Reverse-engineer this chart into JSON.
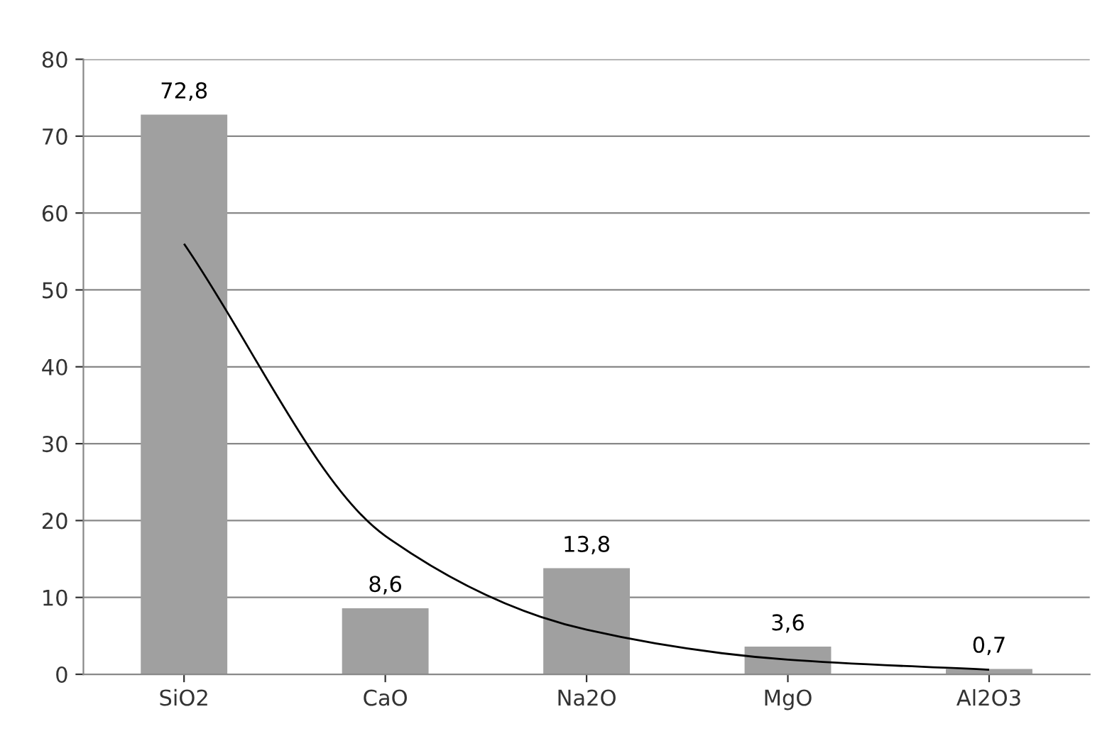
{
  "chart_data": {
    "type": "bar",
    "categories": [
      "SiO2",
      "CaO",
      "Na2O",
      "MgO",
      "Al2O3"
    ],
    "series": [
      {
        "color": "#a0a0a0",
        "values": [
          72.8,
          8.6,
          13.8,
          3.6,
          0.7
        ],
        "value_labels": [
          "72,8",
          "8,6",
          "13,8",
          "3,6",
          "0,7"
        ]
      },
      {
        "type": "line",
        "color": "#000000",
        "values": [
          56,
          18,
          5.8,
          1.9,
          0.6
        ]
      }
    ],
    "ylim": [
      0,
      80
    ],
    "yticks": [
      0,
      10,
      20,
      30,
      40,
      50,
      60,
      70,
      80
    ],
    "grid": "y",
    "legend": false
  }
}
